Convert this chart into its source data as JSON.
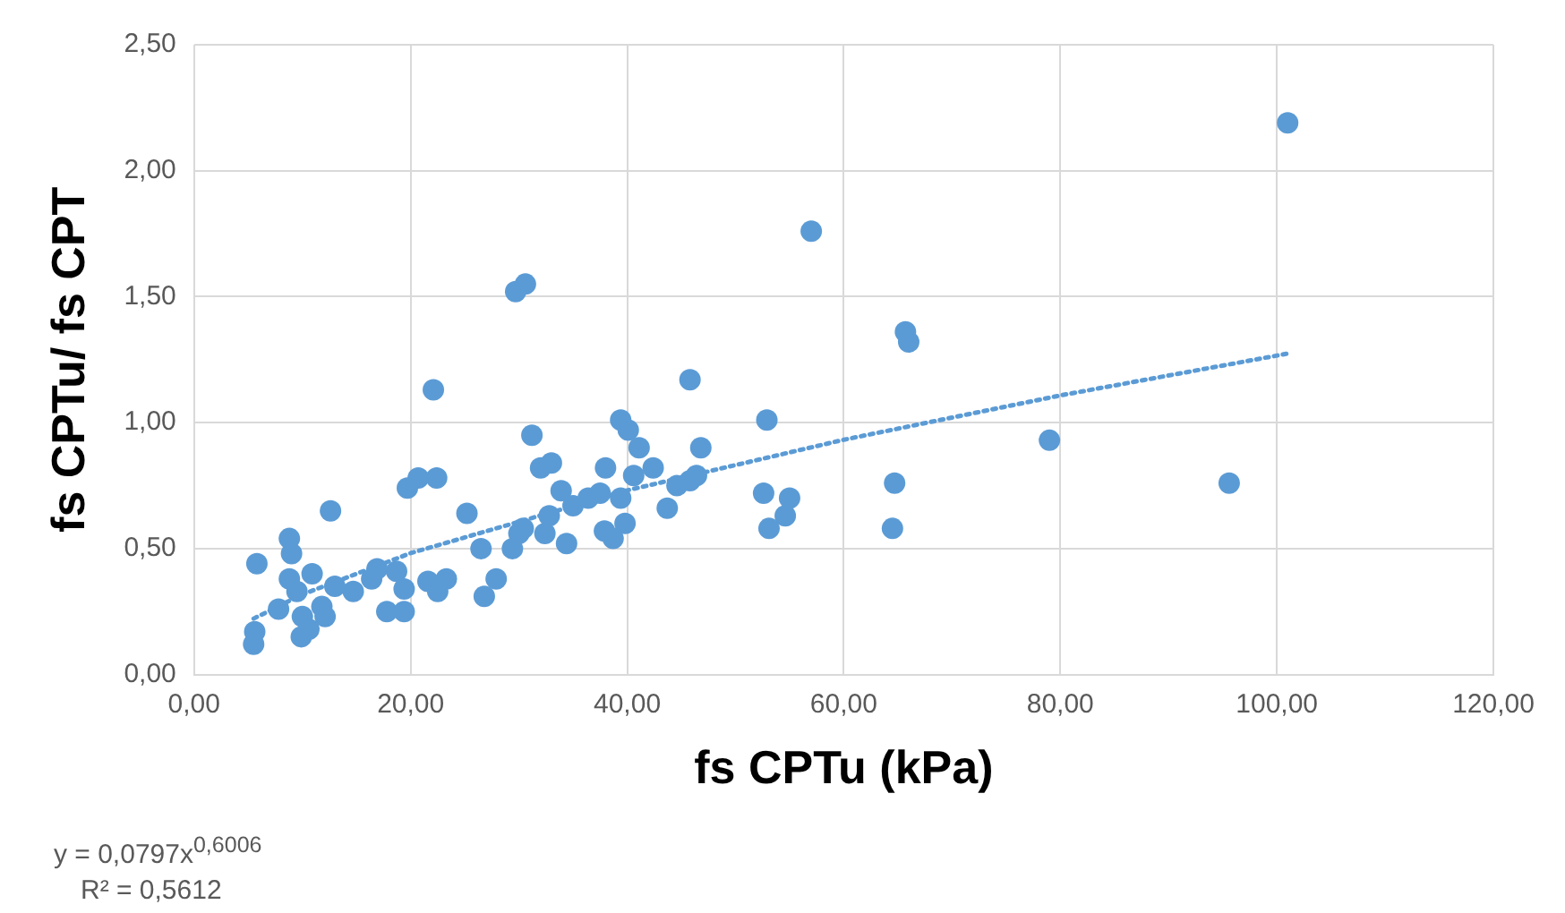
{
  "chart_data": {
    "type": "scatter",
    "xlabel": "fs CPTu (kPa)",
    "ylabel": "fs CPTu/ fs CPT",
    "x": [
      5.8,
      5.6,
      5.5,
      7.8,
      8.8,
      9.0,
      8.8,
      9.5,
      10.0,
      9.9,
      10.6,
      10.9,
      12.6,
      13.0,
      12.1,
      11.8,
      14.7,
      16.4,
      16.9,
      17.8,
      18.7,
      19.4,
      19.4,
      19.7,
      20.7,
      22.4,
      22.1,
      21.6,
      22.5,
      23.3,
      25.2,
      26.5,
      26.8,
      27.9,
      29.4,
      30.0,
      30.4,
      29.7,
      30.6,
      31.2,
      32.0,
      32.4,
      33.0,
      32.8,
      33.9,
      34.4,
      35.0,
      36.4,
      37.5,
      38.0,
      37.9,
      38.7,
      39.4,
      39.4,
      39.8,
      40.1,
      40.6,
      41.1,
      42.4,
      43.7,
      44.6,
      45.8,
      46.4,
      45.8,
      46.8,
      52.9,
      52.6,
      55.0,
      54.6,
      53.1,
      57.0,
      65.7,
      66.0,
      64.7,
      64.5,
      79.0,
      95.6,
      101.0
    ],
    "series": [
      {
        "type": "scatter",
        "color": "#5b9bd5",
        "marker": "circle",
        "values": [
          0.44,
          0.17,
          0.12,
          0.26,
          0.54,
          0.48,
          0.38,
          0.33,
          0.23,
          0.15,
          0.18,
          0.4,
          0.65,
          0.35,
          0.23,
          0.27,
          0.33,
          0.38,
          0.42,
          0.25,
          0.41,
          0.34,
          0.25,
          0.74,
          0.78,
          0.78,
          1.13,
          0.37,
          0.33,
          0.38,
          0.64,
          0.5,
          0.31,
          0.38,
          0.5,
          0.56,
          0.58,
          1.52,
          1.55,
          0.95,
          0.82,
          0.56,
          0.84,
          0.63,
          0.73,
          0.52,
          0.67,
          0.7,
          0.72,
          0.82,
          0.57,
          0.54,
          1.01,
          0.7,
          0.6,
          0.97,
          0.79,
          0.9,
          0.82,
          0.66,
          0.75,
          0.77,
          0.79,
          1.17,
          0.9,
          1.01,
          0.72,
          0.7,
          0.63,
          0.58,
          1.76,
          1.36,
          1.32,
          0.76,
          0.58,
          0.93,
          0.76,
          2.19
        ]
      },
      {
        "type": "line",
        "color": "#5b9bd5",
        "line_style": "dotted",
        "marker": "none",
        "x": [
          5.5,
          10,
          20,
          40,
          60,
          80,
          101
        ],
        "values": [
          0.222,
          0.318,
          0.482,
          0.731,
          0.932,
          1.108,
          1.274
        ]
      }
    ],
    "xlim": [
      0,
      120
    ],
    "xticks": [
      {
        "value": 0,
        "label": "0,00"
      },
      {
        "value": 20,
        "label": "20,00"
      },
      {
        "value": 40,
        "label": "40,00"
      },
      {
        "value": 60,
        "label": "60,00"
      },
      {
        "value": 80,
        "label": "80,00"
      },
      {
        "value": 100,
        "label": "100,00"
      },
      {
        "value": 120,
        "label": "120,00"
      }
    ],
    "ylim": [
      0,
      2.5
    ],
    "yticks": [
      {
        "value": 0,
        "label": "0,00"
      },
      {
        "value": 0.5,
        "label": "0,50"
      },
      {
        "value": 1,
        "label": "1,00"
      },
      {
        "value": 1.5,
        "label": "1,50"
      },
      {
        "value": 2,
        "label": "2,00"
      },
      {
        "value": 2.5,
        "label": "2,50"
      }
    ],
    "grid": true,
    "legend": false,
    "annotations": [
      "y = 0,0797x$^{0,6006}$",
      "R² = 0,5612"
    ]
  }
}
